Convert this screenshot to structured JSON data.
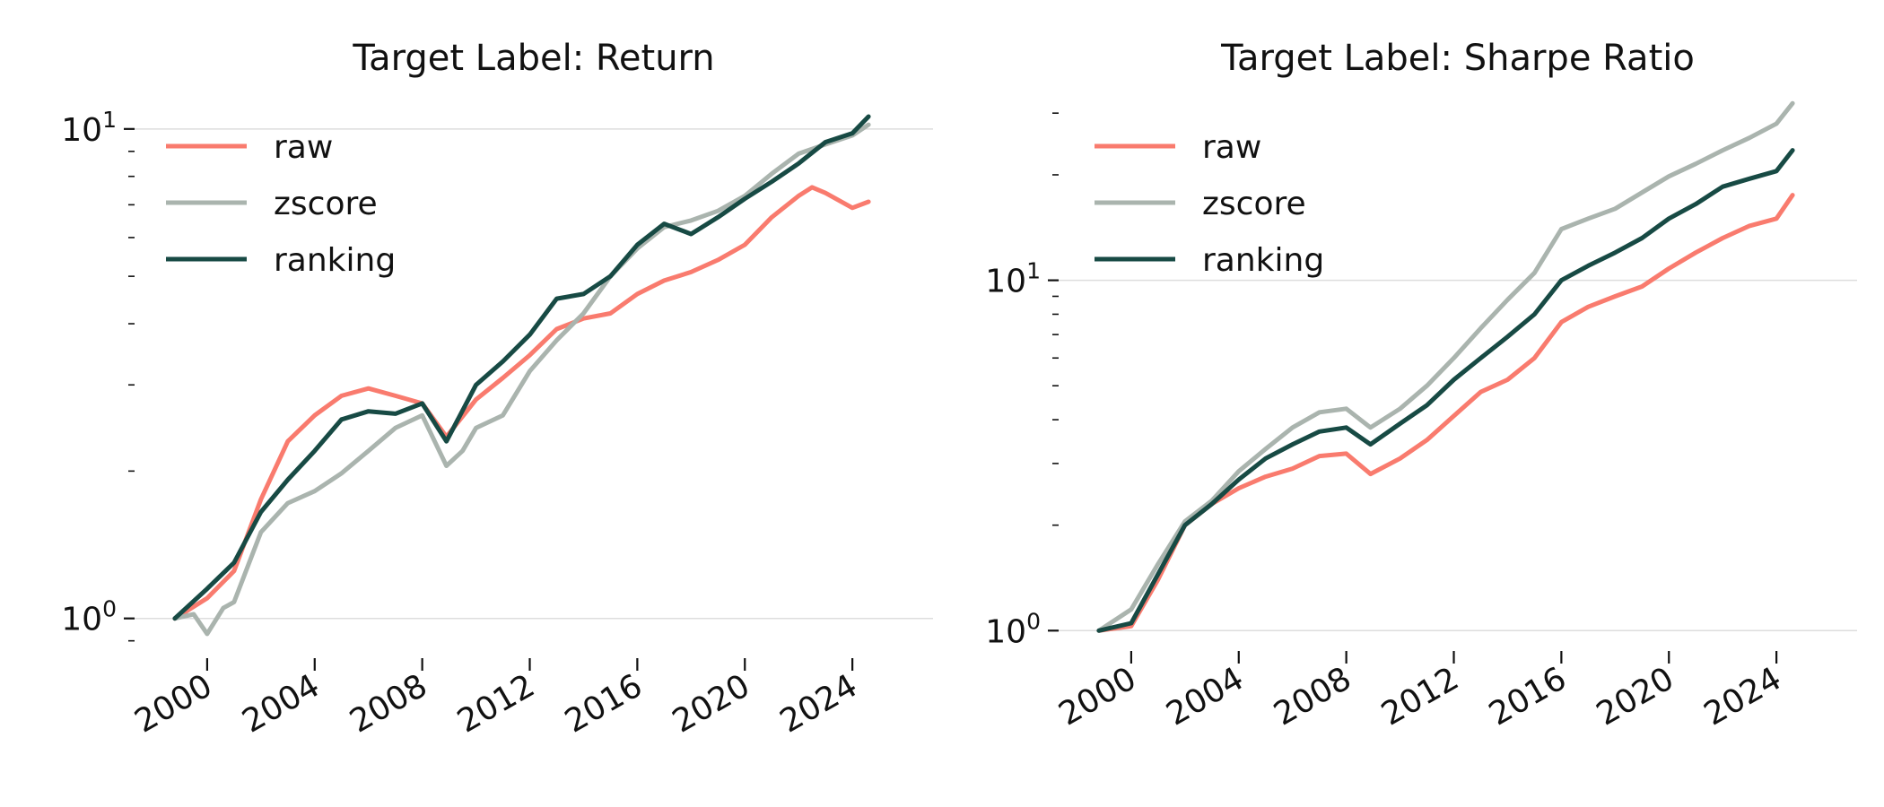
{
  "colors": {
    "raw": "#f97b6e",
    "zscore": "#aab4ae",
    "ranking": "#174a44"
  },
  "chart_data": [
    {
      "type": "line",
      "title": "Target Label: Return",
      "xlabel": "",
      "ylabel": "",
      "yscale": "log",
      "ylim": [
        0.88,
        10.6
      ],
      "xlim": [
        1997.3,
        2027.0
      ],
      "xticks": [
        2000,
        2004,
        2008,
        2012,
        2016,
        2020,
        2024
      ],
      "xtick_labels": [
        "2000",
        "2004",
        "2008",
        "2012",
        "2016",
        "2020",
        "2024"
      ],
      "ytick_labels": [
        {
          "value": 1,
          "base": "10",
          "exp": "0"
        },
        {
          "value": 10,
          "base": "10",
          "exp": "1"
        }
      ],
      "minor_yticks": [
        0.9,
        2,
        3,
        4,
        5,
        6,
        7,
        8,
        9
      ],
      "grid": "y-major",
      "legend_position": "top-left",
      "series": [
        {
          "name": "raw",
          "color_key": "raw",
          "x": [
            1998.8,
            2000,
            2001,
            2002,
            2003,
            2004,
            2005,
            2006,
            2007,
            2008,
            2008.9,
            2010,
            2011,
            2012,
            2013,
            2014,
            2015,
            2016,
            2017,
            2018,
            2019,
            2020,
            2021,
            2022,
            2022.5,
            2023,
            2024,
            2024.6
          ],
          "y": [
            1.0,
            1.1,
            1.25,
            1.75,
            2.3,
            2.6,
            2.85,
            2.95,
            2.85,
            2.75,
            2.35,
            2.8,
            3.1,
            3.45,
            3.9,
            4.1,
            4.2,
            4.6,
            4.9,
            5.1,
            5.4,
            5.8,
            6.6,
            7.3,
            7.6,
            7.4,
            6.9,
            7.1
          ]
        },
        {
          "name": "zscore",
          "color_key": "zscore",
          "x": [
            1998.8,
            1999.5,
            2000,
            2000.6,
            2001,
            2002,
            2003,
            2004,
            2005,
            2006,
            2007,
            2008,
            2008.9,
            2009.5,
            2010,
            2011,
            2012,
            2013,
            2014,
            2015,
            2016,
            2017,
            2018,
            2019,
            2020,
            2021,
            2022,
            2023,
            2024,
            2024.6
          ],
          "y": [
            1.0,
            1.02,
            0.93,
            1.05,
            1.08,
            1.5,
            1.72,
            1.82,
            1.98,
            2.2,
            2.45,
            2.6,
            2.05,
            2.2,
            2.45,
            2.6,
            3.2,
            3.7,
            4.2,
            5.0,
            5.7,
            6.3,
            6.5,
            6.8,
            7.3,
            8.1,
            8.9,
            9.3,
            9.7,
            10.2
          ]
        },
        {
          "name": "ranking",
          "color_key": "ranking",
          "x": [
            1998.8,
            2000,
            2001,
            2002,
            2003,
            2004,
            2005,
            2006,
            2007,
            2008,
            2008.9,
            2010,
            2011,
            2012,
            2013,
            2014,
            2015,
            2016,
            2017,
            2018,
            2019,
            2020,
            2021,
            2022,
            2023,
            2024,
            2024.6
          ],
          "y": [
            1.0,
            1.15,
            1.3,
            1.65,
            1.92,
            2.2,
            2.55,
            2.65,
            2.62,
            2.75,
            2.3,
            3.0,
            3.35,
            3.8,
            4.5,
            4.6,
            5.0,
            5.8,
            6.4,
            6.1,
            6.6,
            7.2,
            7.8,
            8.5,
            9.4,
            9.8,
            10.6
          ]
        }
      ]
    },
    {
      "type": "line",
      "title": "Target Label: Sharpe Ratio",
      "xlabel": "",
      "ylabel": "",
      "yscale": "log",
      "ylim": [
        0.95,
        33.0
      ],
      "xlim": [
        1997.3,
        2027.0
      ],
      "xticks": [
        2000,
        2004,
        2008,
        2012,
        2016,
        2020,
        2024
      ],
      "xtick_labels": [
        "2000",
        "2004",
        "2008",
        "2012",
        "2016",
        "2020",
        "2024"
      ],
      "ytick_labels": [
        {
          "value": 1,
          "base": "10",
          "exp": "0"
        },
        {
          "value": 10,
          "base": "10",
          "exp": "1"
        }
      ],
      "minor_yticks": [
        2,
        3,
        4,
        5,
        6,
        7,
        8,
        9,
        20,
        30
      ],
      "grid": "y-major",
      "legend_position": "top-left",
      "series": [
        {
          "name": "raw",
          "color_key": "raw",
          "x": [
            1998.8,
            2000,
            2001,
            2002,
            2003,
            2004,
            2005,
            2006,
            2007,
            2008,
            2008.9,
            2010,
            2011,
            2012,
            2013,
            2014,
            2015,
            2016,
            2017,
            2018,
            2019,
            2020,
            2021,
            2022,
            2023,
            2024,
            2024.6
          ],
          "y": [
            1.0,
            1.03,
            1.4,
            2.0,
            2.3,
            2.55,
            2.75,
            2.9,
            3.15,
            3.2,
            2.8,
            3.1,
            3.5,
            4.1,
            4.8,
            5.2,
            6.0,
            7.6,
            8.4,
            9.0,
            9.6,
            10.8,
            12.0,
            13.2,
            14.3,
            15.0,
            17.5
          ]
        },
        {
          "name": "zscore",
          "color_key": "zscore",
          "x": [
            1998.8,
            2000,
            2001,
            2002,
            2003,
            2004,
            2005,
            2006,
            2007,
            2008,
            2008.9,
            2010,
            2011,
            2012,
            2013,
            2014,
            2015,
            2016,
            2017,
            2018,
            2019,
            2020,
            2021,
            2022,
            2023,
            2024,
            2024.6
          ],
          "y": [
            1.0,
            1.15,
            1.55,
            2.05,
            2.35,
            2.85,
            3.3,
            3.8,
            4.2,
            4.3,
            3.8,
            4.3,
            5.0,
            6.0,
            7.3,
            8.8,
            10.5,
            14.0,
            15.0,
            16.0,
            17.8,
            19.8,
            21.5,
            23.5,
            25.5,
            28.0,
            32.0
          ]
        },
        {
          "name": "ranking",
          "color_key": "ranking",
          "x": [
            1998.8,
            2000,
            2001,
            2002,
            2003,
            2004,
            2005,
            2006,
            2007,
            2008,
            2008.9,
            2010,
            2011,
            2012,
            2013,
            2014,
            2015,
            2016,
            2017,
            2018,
            2019,
            2020,
            2021,
            2022,
            2023,
            2024,
            2024.6
          ],
          "y": [
            1.0,
            1.05,
            1.45,
            2.0,
            2.3,
            2.7,
            3.1,
            3.4,
            3.7,
            3.8,
            3.4,
            3.9,
            4.4,
            5.2,
            6.0,
            6.9,
            8.0,
            10.0,
            11.0,
            12.0,
            13.2,
            15.0,
            16.5,
            18.5,
            19.5,
            20.5,
            23.5
          ]
        }
      ]
    }
  ]
}
